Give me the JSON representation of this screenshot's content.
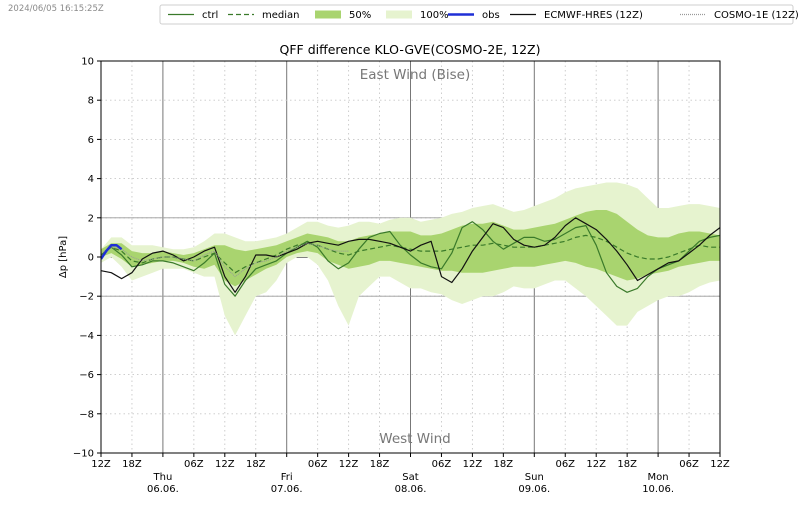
{
  "timestamp": "2024/06/05 16:15:25Z",
  "legend": {
    "items": [
      {
        "label": "ctrl",
        "style": "line",
        "color": "#3a7a2a",
        "dash": ""
      },
      {
        "label": "median",
        "style": "line",
        "color": "#3a7a2a",
        "dash": "5,3"
      },
      {
        "label": "50%",
        "style": "patch",
        "color": "#a9d46f"
      },
      {
        "label": "100%",
        "style": "patch",
        "color": "#e6f3cf"
      },
      {
        "label": "obs",
        "style": "line",
        "color": "#1f2fd6",
        "dash": "",
        "width": 2.5
      },
      {
        "label": "ECMWF-HRES (12Z)",
        "style": "line",
        "color": "#111111",
        "dash": ""
      },
      {
        "label": "COSMO-1E (12Z)",
        "style": "line",
        "color": "#999999",
        "dash": "1,1"
      }
    ]
  },
  "chart_data": {
    "type": "line",
    "title": "QFF difference KLO-GVE(COSMO-2E, 12Z)",
    "ylabel": "Δp [hPa]",
    "ylim": [
      -10,
      10
    ],
    "yticks": [
      -10,
      -8,
      -6,
      -4,
      -2,
      0,
      2,
      4,
      6,
      8,
      10
    ],
    "xlim_hours": [
      0,
      120
    ],
    "annotations": {
      "top": "East Wind (Bise)",
      "bottom": "West Wind"
    },
    "x_ticks": [
      {
        "h": 0,
        "label": "12Z"
      },
      {
        "h": 6,
        "label": "18Z"
      },
      {
        "h": 12,
        "label": "Thu\n06.06."
      },
      {
        "h": 18,
        "label": "06Z"
      },
      {
        "h": 24,
        "label": "12Z"
      },
      {
        "h": 30,
        "label": "18Z"
      },
      {
        "h": 36,
        "label": "Fri\n07.06."
      },
      {
        "h": 42,
        "label": "06Z"
      },
      {
        "h": 48,
        "label": "12Z"
      },
      {
        "h": 54,
        "label": "18Z"
      },
      {
        "h": 60,
        "label": "Sat\n08.06."
      },
      {
        "h": 66,
        "label": "06Z"
      },
      {
        "h": 72,
        "label": "12Z"
      },
      {
        "h": 78,
        "label": "18Z"
      },
      {
        "h": 84,
        "label": "Sun\n09.06."
      },
      {
        "h": 90,
        "label": "06Z"
      },
      {
        "h": 96,
        "label": "12Z"
      },
      {
        "h": 102,
        "label": "18Z"
      },
      {
        "h": 108,
        "label": "Mon\n10.06."
      },
      {
        "h": 114,
        "label": "06Z"
      },
      {
        "h": 120,
        "label": "12Z"
      }
    ],
    "reference_lines": [
      2,
      0,
      -2
    ],
    "series": [
      {
        "name": "100%",
        "kind": "band",
        "color": "#e6f3cf",
        "x": [
          0,
          2,
          4,
          6,
          8,
          10,
          12,
          14,
          16,
          18,
          20,
          22,
          24,
          26,
          28,
          30,
          32,
          34,
          36,
          38,
          40,
          42,
          44,
          46,
          48,
          50,
          52,
          54,
          56,
          58,
          60,
          62,
          64,
          66,
          68,
          70,
          72,
          74,
          76,
          78,
          80,
          82,
          84,
          86,
          88,
          90,
          92,
          94,
          96,
          98,
          100,
          102,
          104,
          106,
          108,
          110,
          112,
          114,
          116,
          118,
          120
        ],
        "lower": [
          -0.3,
          0.0,
          -0.5,
          -1.2,
          -1.0,
          -0.8,
          -0.6,
          -0.6,
          -0.6,
          -0.8,
          -1.0,
          -1.0,
          -3.0,
          -4.0,
          -3.0,
          -2.0,
          -1.8,
          -1.2,
          -0.3,
          0.0,
          0.0,
          -0.4,
          -1.2,
          -2.5,
          -3.5,
          -2.0,
          -1.5,
          -1.0,
          -1.0,
          -1.3,
          -1.6,
          -1.6,
          -1.8,
          -1.9,
          -2.2,
          -2.4,
          -2.2,
          -2.0,
          -2.0,
          -1.8,
          -1.5,
          -1.6,
          -1.6,
          -1.4,
          -1.2,
          -1.2,
          -1.6,
          -2.0,
          -2.5,
          -3.0,
          -3.5,
          -3.5,
          -2.8,
          -2.5,
          -2.2,
          -2.0,
          -2.0,
          -1.8,
          -1.5,
          -1.3,
          -1.2
        ],
        "upper": [
          0.4,
          1.0,
          1.0,
          0.6,
          0.6,
          0.6,
          0.5,
          0.4,
          0.4,
          0.5,
          0.8,
          1.2,
          1.2,
          1.0,
          0.8,
          0.8,
          0.9,
          1.0,
          1.2,
          1.5,
          1.8,
          1.8,
          1.6,
          1.5,
          1.6,
          1.8,
          1.8,
          1.7,
          1.9,
          2.0,
          2.0,
          1.8,
          1.9,
          2.0,
          2.2,
          2.3,
          2.5,
          2.6,
          2.7,
          2.5,
          2.3,
          2.4,
          2.6,
          2.8,
          3.0,
          3.3,
          3.5,
          3.6,
          3.7,
          3.8,
          3.8,
          3.7,
          3.5,
          3.0,
          2.5,
          2.5,
          2.6,
          2.7,
          2.7,
          2.6,
          2.5
        ]
      },
      {
        "name": "50%",
        "kind": "band",
        "color": "#a9d46f",
        "x": [
          0,
          2,
          4,
          6,
          8,
          10,
          12,
          14,
          16,
          18,
          20,
          22,
          24,
          26,
          28,
          30,
          32,
          34,
          36,
          38,
          40,
          42,
          44,
          46,
          48,
          50,
          52,
          54,
          56,
          58,
          60,
          62,
          64,
          66,
          68,
          70,
          72,
          74,
          76,
          78,
          80,
          82,
          84,
          86,
          88,
          90,
          92,
          94,
          96,
          98,
          100,
          102,
          104,
          106,
          108,
          110,
          112,
          114,
          116,
          118,
          120
        ],
        "lower": [
          0.0,
          0.2,
          -0.1,
          -0.5,
          -0.4,
          -0.3,
          -0.2,
          -0.2,
          -0.3,
          -0.5,
          -0.6,
          -0.4,
          -1.2,
          -1.5,
          -1.2,
          -0.9,
          -0.6,
          -0.4,
          0.0,
          0.2,
          0.3,
          0.2,
          -0.2,
          -0.4,
          -0.6,
          -0.5,
          -0.4,
          -0.2,
          -0.2,
          -0.3,
          -0.4,
          -0.5,
          -0.6,
          -0.7,
          -0.7,
          -0.8,
          -0.8,
          -0.8,
          -0.7,
          -0.6,
          -0.5,
          -0.5,
          -0.5,
          -0.4,
          -0.3,
          -0.2,
          -0.3,
          -0.5,
          -0.6,
          -0.8,
          -1.0,
          -1.2,
          -1.1,
          -0.9,
          -0.8,
          -0.7,
          -0.5,
          -0.4,
          -0.3,
          -0.2,
          -0.2
        ],
        "upper": [
          0.4,
          0.7,
          0.7,
          0.3,
          0.2,
          0.2,
          0.3,
          0.2,
          0.1,
          0.2,
          0.4,
          0.6,
          0.6,
          0.4,
          0.3,
          0.4,
          0.5,
          0.6,
          0.8,
          1.0,
          1.2,
          1.1,
          1.0,
          0.8,
          0.8,
          1.0,
          1.1,
          1.2,
          1.3,
          1.3,
          1.3,
          1.1,
          1.1,
          1.2,
          1.4,
          1.6,
          1.7,
          1.7,
          1.8,
          1.6,
          1.4,
          1.4,
          1.5,
          1.6,
          1.7,
          1.9,
          2.1,
          2.3,
          2.4,
          2.4,
          2.2,
          1.8,
          1.4,
          1.1,
          1.0,
          1.0,
          1.2,
          1.3,
          1.3,
          1.2,
          1.1
        ]
      },
      {
        "name": "median",
        "kind": "line",
        "color": "#3a7a2a",
        "dash": "5,3",
        "width": 1.2,
        "x": [
          0,
          2,
          4,
          6,
          8,
          10,
          12,
          14,
          16,
          18,
          20,
          22,
          24,
          26,
          28,
          30,
          32,
          34,
          36,
          38,
          40,
          42,
          44,
          46,
          48,
          50,
          52,
          54,
          56,
          58,
          60,
          62,
          64,
          66,
          68,
          70,
          72,
          74,
          76,
          78,
          80,
          82,
          84,
          86,
          88,
          90,
          92,
          94,
          96,
          98,
          100,
          102,
          104,
          106,
          108,
          110,
          112,
          114,
          116,
          118,
          120
        ],
        "y": [
          0.1,
          0.5,
          0.3,
          -0.2,
          -0.3,
          -0.1,
          0.0,
          0.0,
          -0.1,
          -0.2,
          0.0,
          0.2,
          -0.3,
          -0.8,
          -0.5,
          -0.3,
          -0.1,
          0.1,
          0.4,
          0.6,
          0.7,
          0.6,
          0.4,
          0.2,
          0.1,
          0.3,
          0.4,
          0.5,
          0.6,
          0.5,
          0.4,
          0.3,
          0.3,
          0.3,
          0.4,
          0.5,
          0.6,
          0.6,
          0.7,
          0.6,
          0.5,
          0.5,
          0.5,
          0.6,
          0.7,
          0.8,
          1.0,
          1.1,
          1.0,
          0.8,
          0.5,
          0.2,
          0.0,
          -0.1,
          -0.1,
          0.0,
          0.2,
          0.4,
          0.6,
          0.5,
          0.5
        ]
      },
      {
        "name": "ctrl",
        "kind": "line",
        "color": "#3a7a2a",
        "dash": "",
        "width": 1.2,
        "x": [
          0,
          2,
          4,
          6,
          8,
          10,
          12,
          14,
          16,
          18,
          20,
          22,
          24,
          26,
          28,
          30,
          32,
          34,
          36,
          38,
          40,
          42,
          44,
          46,
          48,
          50,
          52,
          54,
          56,
          58,
          60,
          62,
          64,
          66,
          68,
          70,
          72,
          74,
          76,
          78,
          80,
          82,
          84,
          86,
          88,
          90,
          92,
          94,
          96,
          98,
          100,
          102,
          104,
          106,
          108,
          110,
          112,
          114,
          116,
          118,
          120
        ],
        "y": [
          0.1,
          0.5,
          0.1,
          -0.5,
          -0.4,
          -0.2,
          -0.2,
          -0.3,
          -0.5,
          -0.7,
          -0.3,
          0.2,
          -1.4,
          -2.0,
          -1.2,
          -0.6,
          -0.4,
          -0.2,
          0.2,
          0.5,
          0.8,
          0.5,
          -0.2,
          -0.6,
          -0.3,
          0.4,
          1.0,
          1.2,
          1.3,
          0.6,
          0.1,
          -0.3,
          -0.5,
          -0.6,
          0.2,
          1.5,
          1.8,
          1.4,
          0.8,
          0.4,
          0.7,
          1.0,
          1.0,
          0.8,
          0.9,
          1.2,
          1.5,
          1.6,
          0.6,
          -0.8,
          -1.5,
          -1.8,
          -1.6,
          -1.0,
          -0.6,
          -0.4,
          -0.2,
          0.3,
          0.8,
          1.0,
          1.1
        ]
      },
      {
        "name": "ECMWF-HRES (12Z)",
        "kind": "line",
        "color": "#111111",
        "dash": "",
        "width": 1.2,
        "x": [
          0,
          2,
          4,
          6,
          8,
          10,
          12,
          14,
          16,
          18,
          20,
          22,
          24,
          26,
          28,
          30,
          32,
          34,
          36,
          38,
          40,
          42,
          44,
          46,
          48,
          50,
          52,
          54,
          56,
          58,
          60,
          62,
          64,
          66,
          68,
          70,
          72,
          74,
          76,
          78,
          80,
          82,
          84,
          86,
          88,
          90,
          92,
          94,
          96,
          98,
          100,
          102,
          104,
          106,
          108,
          110,
          112,
          114,
          116,
          118,
          120
        ],
        "y": [
          -0.7,
          -0.8,
          -1.1,
          -0.8,
          -0.1,
          0.2,
          0.3,
          0.1,
          -0.2,
          0.0,
          0.3,
          0.5,
          -1.0,
          -1.8,
          -1.0,
          0.1,
          0.1,
          0.0,
          0.2,
          0.4,
          0.7,
          0.8,
          0.7,
          0.6,
          0.8,
          0.9,
          0.9,
          0.8,
          0.7,
          0.5,
          0.3,
          0.6,
          0.8,
          -1.0,
          -1.3,
          -0.6,
          0.3,
          1.0,
          1.7,
          1.5,
          0.9,
          0.6,
          0.5,
          0.6,
          1.0,
          1.6,
          2.0,
          1.7,
          1.4,
          0.9,
          0.3,
          -0.4,
          -1.2,
          -0.9,
          -0.6,
          -0.3,
          -0.2,
          0.2,
          0.6,
          1.1,
          1.5
        ]
      },
      {
        "name": "COSMO-1E (12Z)",
        "kind": "line",
        "color": "#999999",
        "dash": "1,1",
        "width": 1.0,
        "x": [
          0,
          2,
          4,
          6,
          8,
          10,
          12,
          14,
          16,
          18,
          20,
          22,
          24,
          26,
          28,
          30,
          32,
          34,
          36,
          38,
          40,
          42,
          44,
          46,
          48
        ],
        "y": [
          0.2,
          0.5,
          0.4,
          0.0,
          -0.2,
          -0.1,
          0.0,
          0.0,
          -0.1,
          -0.2,
          0.1,
          0.3,
          -0.5,
          -1.0,
          -0.6,
          -0.3,
          -0.2,
          0.0,
          0.3,
          0.5,
          0.7,
          0.6,
          0.4,
          0.3,
          0.3
        ]
      },
      {
        "name": "obs",
        "kind": "line",
        "color": "#1f2fd6",
        "dash": "",
        "width": 2.5,
        "x": [
          0,
          1,
          2,
          3,
          4
        ],
        "y": [
          -0.1,
          0.3,
          0.6,
          0.6,
          0.4
        ]
      }
    ]
  }
}
